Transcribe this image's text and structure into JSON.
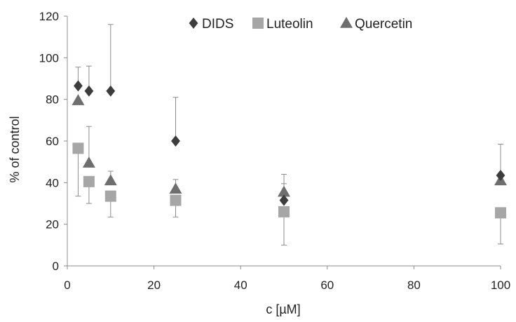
{
  "chart_data": {
    "type": "scatter",
    "xlabel": "c [µM]",
    "ylabel": "% of control",
    "xlim": [
      0,
      100
    ],
    "ylim": [
      0,
      120
    ],
    "x_ticks": [
      0,
      20,
      40,
      60,
      80,
      100
    ],
    "y_ticks": [
      0,
      20,
      40,
      60,
      80,
      100,
      120
    ],
    "grid": false,
    "error_bars": "upper for DIDS, lower for Luteolin, upper for Quercetin",
    "legend_position": "top",
    "series": [
      {
        "name": "DIDS",
        "marker": "diamond",
        "color": "#3d3d3d",
        "points": [
          {
            "x": 2.5,
            "y": 86.5,
            "err": 9
          },
          {
            "x": 5,
            "y": 84,
            "err": 12
          },
          {
            "x": 10,
            "y": 84,
            "err": 32
          },
          {
            "x": 25,
            "y": 60,
            "err": 21
          },
          {
            "x": 50,
            "y": 31.5,
            "err": 8
          },
          {
            "x": 100,
            "y": 43.5,
            "err": 15
          }
        ]
      },
      {
        "name": "Luteolin",
        "marker": "square",
        "color": "#a6a6a6",
        "points": [
          {
            "x": 2.5,
            "y": 56.5,
            "err": 23
          },
          {
            "x": 5,
            "y": 40.5,
            "err": 10.5
          },
          {
            "x": 10,
            "y": 33.5,
            "err": 10
          },
          {
            "x": 25,
            "y": 31.5,
            "err": 8
          },
          {
            "x": 50,
            "y": 26,
            "err": 16
          },
          {
            "x": 100,
            "y": 25.5,
            "err": 15
          }
        ]
      },
      {
        "name": "Quercetin",
        "marker": "triangle",
        "color": "#6e6e6e",
        "points": [
          {
            "x": 2.5,
            "y": 79.5,
            "err": 0
          },
          {
            "x": 5,
            "y": 49.5,
            "err": 17.5
          },
          {
            "x": 10,
            "y": 41,
            "err": 4.5
          },
          {
            "x": 25,
            "y": 37,
            "err": 4.5
          },
          {
            "x": 50,
            "y": 35.5,
            "err": 8.5
          },
          {
            "x": 100,
            "y": 41,
            "err": 0
          }
        ]
      }
    ]
  }
}
